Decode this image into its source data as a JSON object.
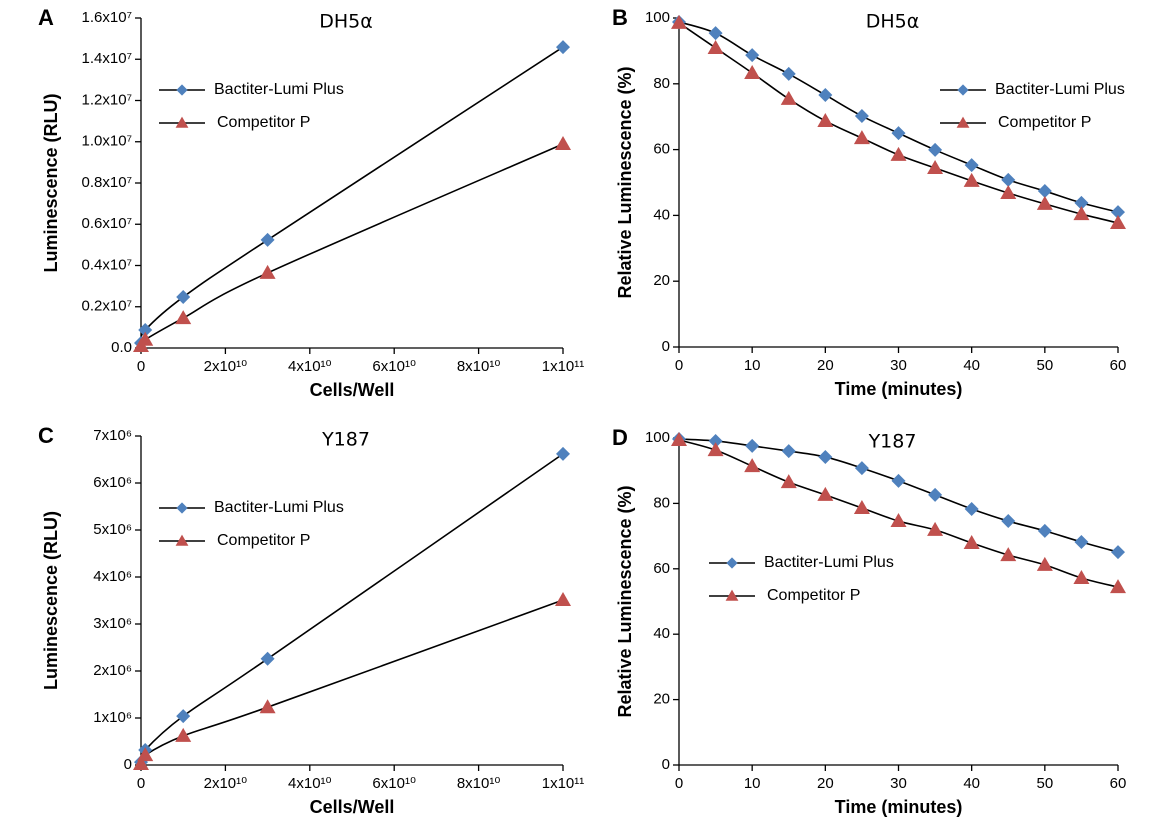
{
  "chart_data": [
    {
      "type": "line",
      "label": "A",
      "title": "DH5α",
      "x_label": "Cells/Well",
      "y_label": "Luminescence (RLU)",
      "x": [
        0,
        1000000000,
        10000000000,
        30000000000,
        100000000000
      ],
      "xlim": [
        0,
        100000000000
      ],
      "xticks": [
        0,
        {
          "value": 20000000000,
          "label": "2x10¹⁰"
        },
        {
          "value": 40000000000,
          "label": "4x10¹⁰"
        },
        {
          "value": 60000000000,
          "label": "6x10¹⁰"
        },
        {
          "value": 80000000000,
          "label": "8x10¹⁰"
        },
        {
          "value": 100000000000,
          "label": "1x10¹¹"
        }
      ],
      "ylim": [
        0,
        16000000
      ],
      "yticks": [
        {
          "value": 0,
          "label": "0.0"
        },
        {
          "value": 2000000,
          "label": "0.2x10⁷"
        },
        {
          "value": 4000000,
          "label": "0.4x10⁷"
        },
        {
          "value": 6000000,
          "label": "0.6x10⁷"
        },
        {
          "value": 8000000,
          "label": "0.8x10⁷"
        },
        {
          "value": 10000000,
          "label": "1.0x10⁷"
        },
        {
          "value": 12000000,
          "label": "1.2x10⁷"
        },
        {
          "value": 14000000,
          "label": "1.4x10⁷"
        },
        {
          "value": 16000000,
          "label": "1.6x10⁷"
        }
      ],
      "legend_position": "upper left",
      "series": [
        {
          "name": "Bactiter-Lumi Plus",
          "color": "#4f81bd",
          "marker": "diamond",
          "values": [
            240000,
            870000,
            2470000,
            5240000,
            14590000
          ]
        },
        {
          "name": "Competitor P",
          "color": "#c0504d",
          "marker": "triangle",
          "values": [
            100000,
            400000,
            1450000,
            3640000,
            9890000
          ]
        }
      ]
    },
    {
      "type": "line",
      "label": "B",
      "title": "DH5α",
      "x_label": "Time (minutes)",
      "y_label": "Relative Luminescence (%)",
      "x": [
        0,
        5,
        10,
        15,
        20,
        25,
        30,
        35,
        40,
        45,
        50,
        55,
        60
      ],
      "xlim": [
        0,
        60
      ],
      "xticks": [
        0,
        10,
        20,
        30,
        40,
        50,
        60
      ],
      "ylim": [
        0,
        100
      ],
      "yticks": [
        0,
        20,
        40,
        60,
        80,
        100
      ],
      "legend_position": "upper right",
      "series": [
        {
          "name": "Bactiter-Lumi Plus",
          "color": "#4f81bd",
          "marker": "diamond",
          "values": [
            98.8,
            95.4,
            88.7,
            83,
            76.6,
            70.2,
            65,
            59.9,
            55.3,
            50.8,
            47.4,
            43.8,
            41
          ]
        },
        {
          "name": "Competitor P",
          "color": "#c0504d",
          "marker": "triangle",
          "values": [
            98.5,
            90.9,
            83.3,
            75.4,
            68.7,
            63.5,
            58.4,
            54.4,
            50.5,
            46.8,
            43.5,
            40.4,
            37.7
          ]
        }
      ]
    },
    {
      "type": "line",
      "label": "C",
      "title": "Y187",
      "x_label": "Cells/Well",
      "y_label": "Luminescence (RLU)",
      "x": [
        0,
        1000000000,
        10000000000,
        30000000000,
        100000000000
      ],
      "xlim": [
        0,
        100000000000
      ],
      "xticks": [
        0,
        {
          "value": 20000000000,
          "label": "2x10¹⁰"
        },
        {
          "value": 40000000000,
          "label": "4x10¹⁰"
        },
        {
          "value": 60000000000,
          "label": "6x10¹⁰"
        },
        {
          "value": 80000000000,
          "label": "8x10¹⁰"
        },
        {
          "value": 100000000000,
          "label": "1x10¹¹"
        }
      ],
      "ylim": [
        0,
        7000000
      ],
      "yticks": [
        0,
        {
          "value": 1000000,
          "label": "1x10⁶"
        },
        {
          "value": 2000000,
          "label": "2x10⁶"
        },
        {
          "value": 3000000,
          "label": "3x10⁶"
        },
        {
          "value": 4000000,
          "label": "4x10⁶"
        },
        {
          "value": 5000000,
          "label": "5x10⁶"
        },
        {
          "value": 6000000,
          "label": "6x10⁶"
        },
        {
          "value": 7000000,
          "label": "7x10⁶"
        }
      ],
      "legend_position": "upper left",
      "series": [
        {
          "name": "Bactiter-Lumi Plus",
          "color": "#4f81bd",
          "marker": "diamond",
          "values": [
            60000,
            320000,
            1040000,
            2260000,
            6620000
          ]
        },
        {
          "name": "Competitor P",
          "color": "#c0504d",
          "marker": "triangle",
          "values": [
            20000,
            210000,
            620000,
            1230000,
            3510000
          ]
        }
      ]
    },
    {
      "type": "line",
      "label": "D",
      "title": "Y187",
      "x_label": "Time (minutes)",
      "y_label": "Relative Luminescence (%)",
      "x": [
        0,
        5,
        10,
        15,
        20,
        25,
        30,
        35,
        40,
        45,
        50,
        55,
        60
      ],
      "xlim": [
        0,
        60
      ],
      "xticks": [
        0,
        10,
        20,
        30,
        40,
        50,
        60
      ],
      "ylim": [
        0,
        100
      ],
      "yticks": [
        0,
        20,
        40,
        60,
        80,
        100
      ],
      "legend_position": "center left",
      "series": [
        {
          "name": "Bactiter-Lumi Plus",
          "color": "#4f81bd",
          "marker": "diamond",
          "values": [
            99.7,
            99.1,
            97.6,
            96,
            94.2,
            90.8,
            86.9,
            82.6,
            78.3,
            74.6,
            71.6,
            68.2,
            65.1
          ]
        },
        {
          "name": "Competitor P",
          "color": "#c0504d",
          "marker": "triangle",
          "values": [
            99.4,
            96.3,
            91.4,
            86.5,
            82.6,
            78.6,
            74.6,
            71.9,
            67.9,
            64.2,
            61.2,
            57.2,
            54.4
          ]
        }
      ]
    }
  ]
}
